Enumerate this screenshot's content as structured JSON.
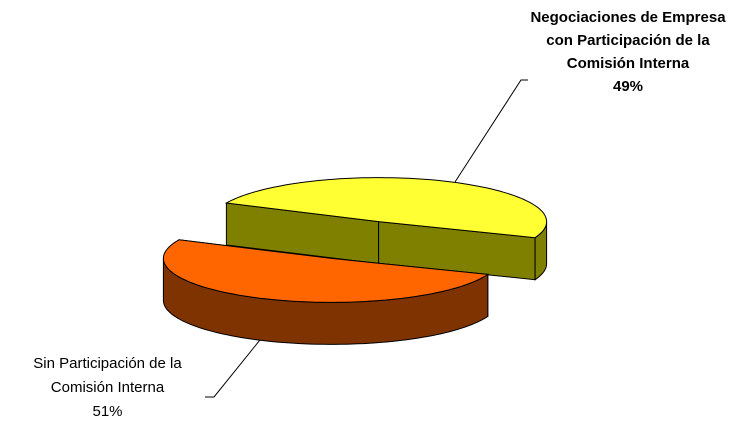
{
  "chart_data": {
    "type": "pie3d",
    "categories": [
      "Negociaciones de Empresa con Participación de la Comisión Interna",
      "Sin Participación de la Comisión Interna"
    ],
    "values": [
      49,
      51
    ],
    "value_labels": [
      "49%",
      "51%"
    ],
    "colors": [
      "#ffff33",
      "#ff6600"
    ],
    "side_colors": [
      "#808000",
      "#7f3300"
    ]
  }
}
